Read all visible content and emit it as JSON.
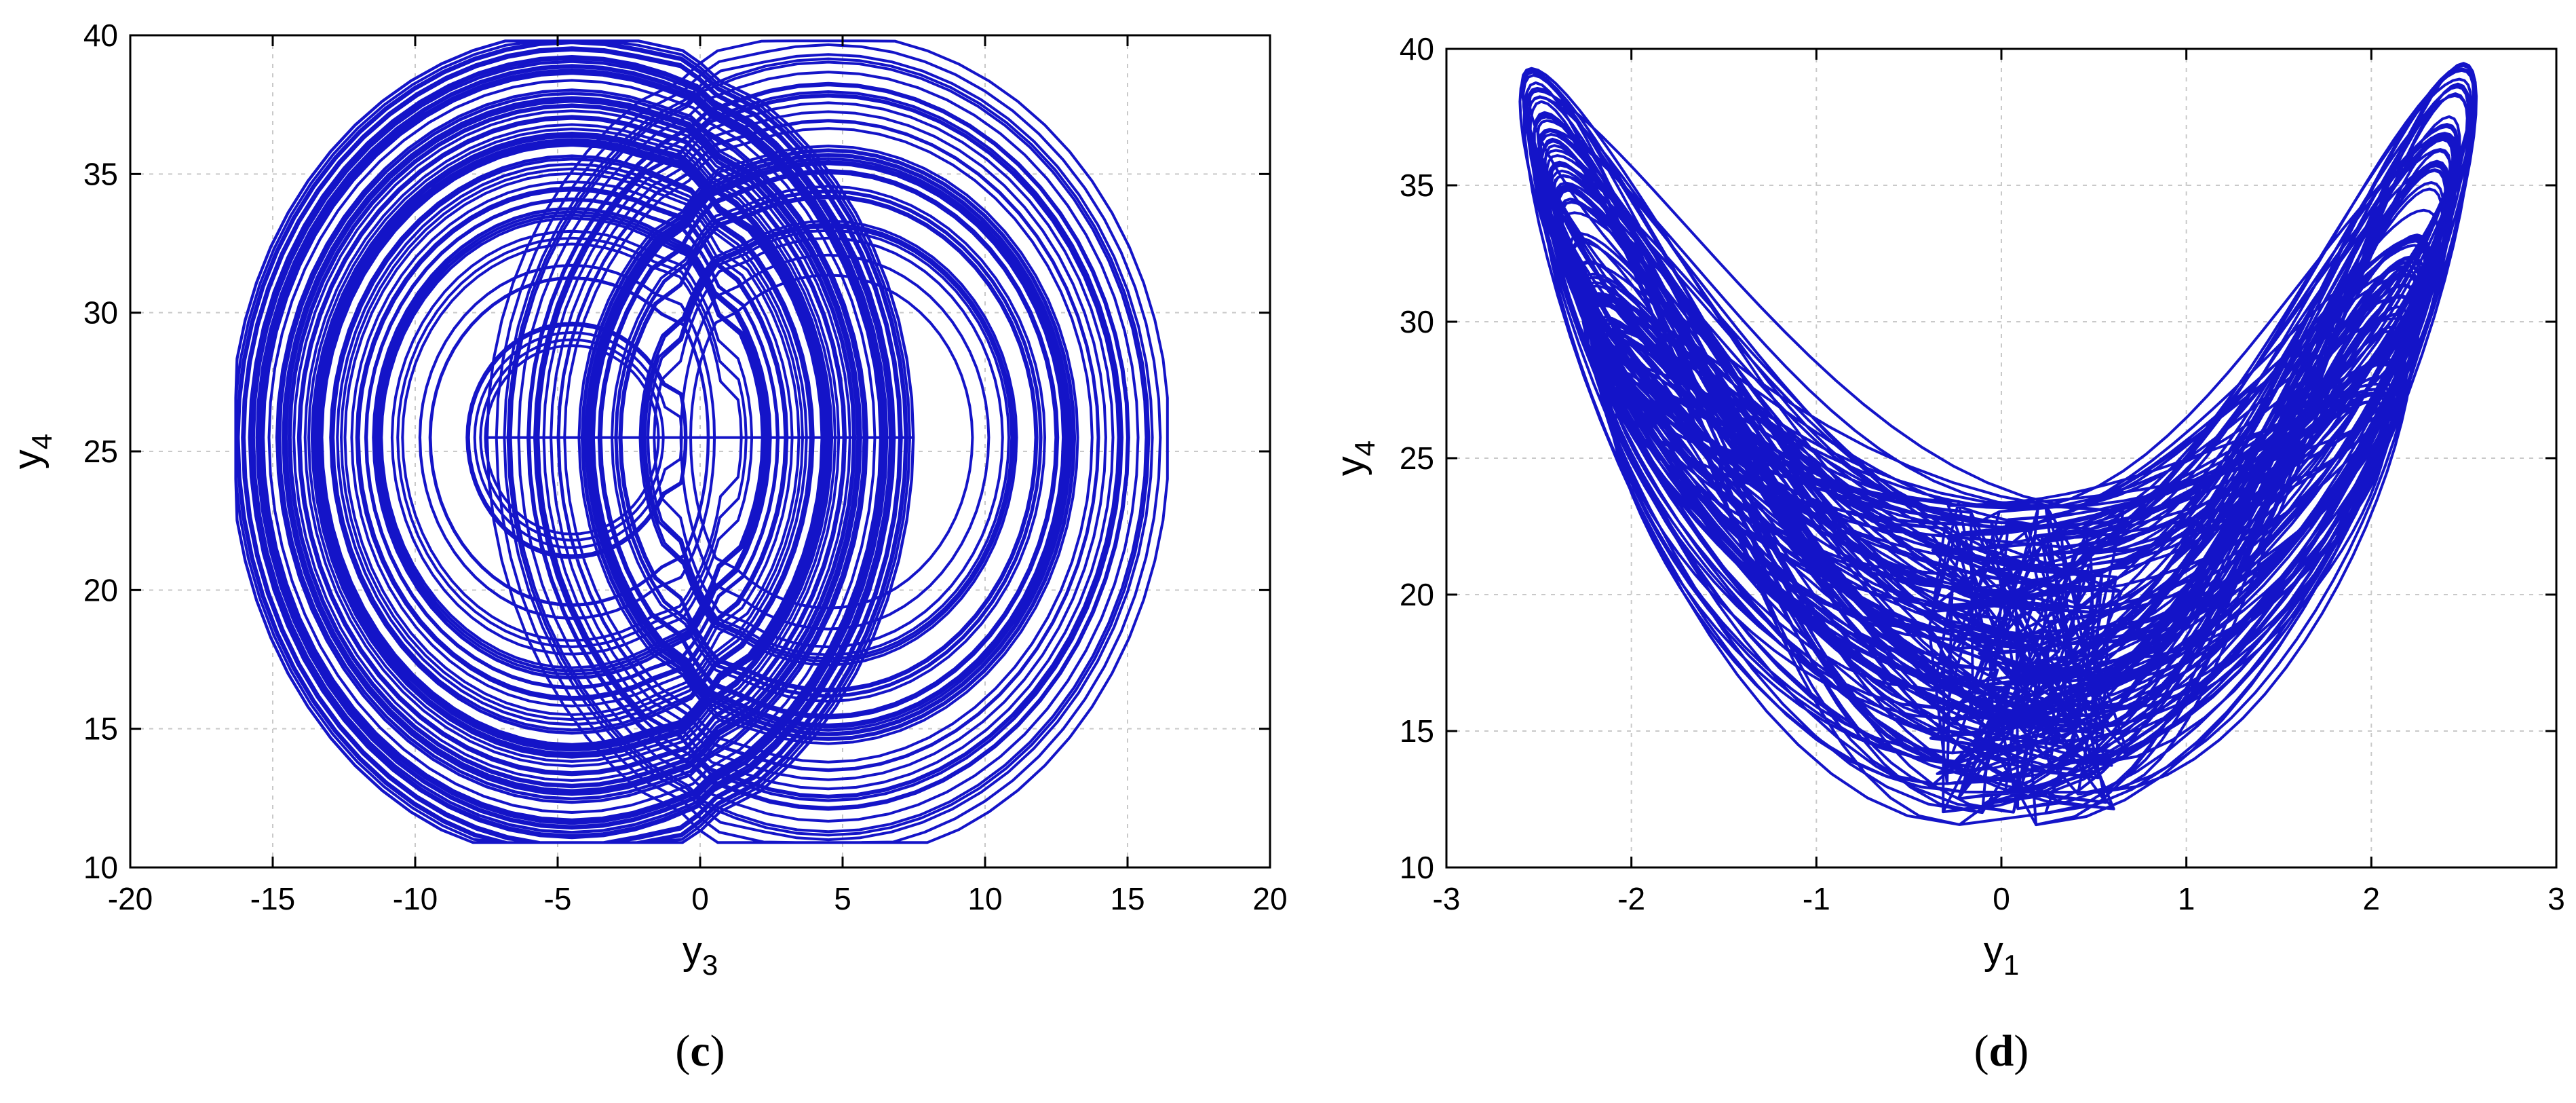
{
  "colors": {
    "series": "#1414c8",
    "grid": "#c9c9c9",
    "axes": "#000000"
  },
  "chart_data": [
    {
      "type": "line",
      "panel": "(c)",
      "title": "",
      "xlabel": {
        "base": "y",
        "sub": "3"
      },
      "ylabel": {
        "base": "y",
        "sub": "4"
      },
      "xlim": [
        -20,
        20
      ],
      "ylim": [
        10,
        40
      ],
      "xticks": [
        -20,
        -15,
        -10,
        -5,
        0,
        5,
        10,
        15,
        20
      ],
      "yticks": [
        10,
        15,
        20,
        25,
        30,
        35,
        40
      ],
      "grid": true,
      "series": [
        {
          "attractor": "double-scroll phase portrait",
          "left_focus": [
            -4.5,
            25.5
          ],
          "right_focus": [
            4.5,
            25.5
          ],
          "x_extent": [
            -16.3,
            16.4
          ],
          "y_extent": [
            10.9,
            39.8
          ],
          "crossover_point": [
            0,
            25
          ]
        }
      ]
    },
    {
      "type": "line",
      "panel": "(d)",
      "title": "",
      "xlabel": {
        "base": "y",
        "sub": "1"
      },
      "ylabel": {
        "base": "y",
        "sub": "4"
      },
      "xlim": [
        -3,
        3
      ],
      "ylim": [
        10,
        40
      ],
      "xticks": [
        -3,
        -2,
        -1,
        0,
        1,
        2,
        3
      ],
      "yticks": [
        10,
        15,
        20,
        25,
        30,
        35,
        40
      ],
      "grid": true,
      "series": [
        {
          "attractor": "butterfly-shaped phase portrait",
          "left_lobe_peak": [
            -2.3,
            39.8
          ],
          "right_lobe_peak": [
            2.35,
            39.0
          ],
          "central_cusp": [
            0.9,
            27.0
          ],
          "x_extent": [
            -2.7,
            2.6
          ],
          "y_extent": [
            10.9,
            39.8
          ]
        }
      ]
    }
  ]
}
